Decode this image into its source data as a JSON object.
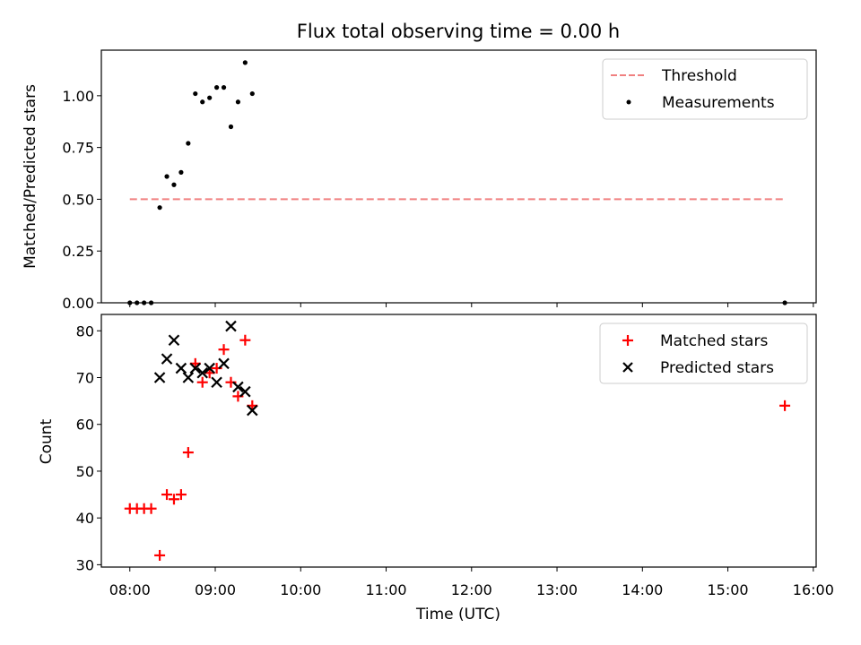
{
  "chart_data": [
    {
      "type": "scatter",
      "title": "Flux total observing time = 0.00 h",
      "xlabel": "",
      "ylabel": "Matched/Predicted stars",
      "ylim": [
        0,
        1.22
      ],
      "yticks": [
        "0.00",
        "0.25",
        "0.50",
        "0.75",
        "1.00"
      ],
      "legend_position": "top-right",
      "threshold": {
        "name": "Threshold",
        "value": 0.5,
        "x_range": [
          "08:00",
          "15:40"
        ],
        "color": "#f08080",
        "style": "dashed"
      },
      "series": [
        {
          "name": "Measurements",
          "color": "#000000",
          "marker": "dot",
          "points": [
            [
              "08:00",
              0.0
            ],
            [
              "08:05",
              0.0
            ],
            [
              "08:10",
              0.0
            ],
            [
              "08:15",
              0.0
            ],
            [
              "08:21",
              0.46
            ],
            [
              "08:26",
              0.61
            ],
            [
              "08:31",
              0.57
            ],
            [
              "08:36",
              0.63
            ],
            [
              "08:41",
              0.77
            ],
            [
              "08:46",
              1.01
            ],
            [
              "08:51",
              0.97
            ],
            [
              "08:56",
              0.99
            ],
            [
              "09:01",
              1.04
            ],
            [
              "09:06",
              1.04
            ],
            [
              "09:11",
              0.85
            ],
            [
              "09:16",
              0.97
            ],
            [
              "09:21",
              1.16
            ],
            [
              "09:26",
              1.01
            ],
            [
              "15:40",
              0.0
            ]
          ]
        }
      ]
    },
    {
      "type": "scatter",
      "title": "",
      "xlabel": "Time (UTC)",
      "ylabel": "Count",
      "ylim": [
        29.5,
        83.5
      ],
      "yticks": [
        "30",
        "40",
        "50",
        "60",
        "70",
        "80"
      ],
      "xlim": [
        "07:40",
        "16:02"
      ],
      "xticks": [
        "08:00",
        "09:00",
        "10:00",
        "11:00",
        "12:00",
        "13:00",
        "14:00",
        "15:00",
        "16:00"
      ],
      "legend_position": "top-right",
      "series": [
        {
          "name": "Matched stars",
          "color": "#ff0000",
          "marker": "plus",
          "points": [
            [
              "08:00",
              42
            ],
            [
              "08:05",
              42
            ],
            [
              "08:10",
              42
            ],
            [
              "08:15",
              42
            ],
            [
              "08:21",
              32
            ],
            [
              "08:26",
              45
            ],
            [
              "08:31",
              44
            ],
            [
              "08:36",
              45
            ],
            [
              "08:41",
              54
            ],
            [
              "08:46",
              73
            ],
            [
              "08:51",
              69
            ],
            [
              "08:56",
              71
            ],
            [
              "09:01",
              72
            ],
            [
              "09:06",
              76
            ],
            [
              "09:11",
              69
            ],
            [
              "09:16",
              66
            ],
            [
              "09:21",
              78
            ],
            [
              "09:26",
              64
            ],
            [
              "15:40",
              64
            ]
          ]
        },
        {
          "name": "Predicted stars",
          "color": "#000000",
          "marker": "x",
          "points": [
            [
              "08:21",
              70
            ],
            [
              "08:26",
              74
            ],
            [
              "08:31",
              78
            ],
            [
              "08:36",
              72
            ],
            [
              "08:41",
              70
            ],
            [
              "08:46",
              72
            ],
            [
              "08:51",
              71
            ],
            [
              "08:56",
              72
            ],
            [
              "09:01",
              69
            ],
            [
              "09:06",
              73
            ],
            [
              "09:11",
              81
            ],
            [
              "09:16",
              68
            ],
            [
              "09:21",
              67
            ],
            [
              "09:26",
              63
            ]
          ]
        }
      ]
    }
  ]
}
